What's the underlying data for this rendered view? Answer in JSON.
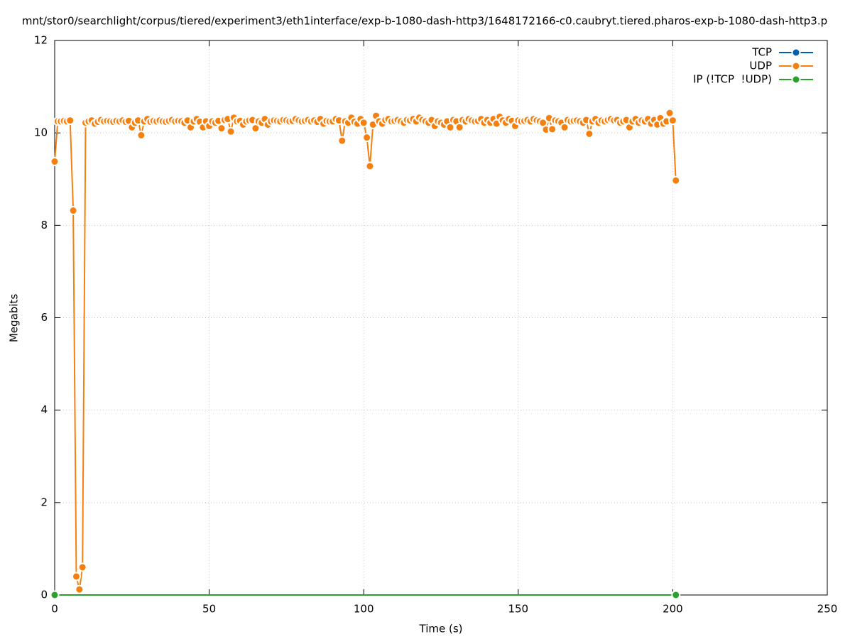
{
  "chart_data": {
    "type": "line",
    "title": "mnt/stor0/searchlight/corpus/tiered/experiment3/eth1interface/exp-b-1080-dash-http3/1648172166-c0.caubryt.tiered.pharos-exp-b-1080-dash-http3.p",
    "x_label": "Time (s)",
    "y_label": "Megabits",
    "xlim": [
      0,
      250
    ],
    "ylim": [
      0,
      12
    ],
    "xticks": [
      0,
      50,
      100,
      150,
      200,
      250
    ],
    "yticks": [
      0,
      2,
      4,
      6,
      8,
      10,
      12
    ],
    "grid": true,
    "legend": "top-right",
    "series": [
      {
        "name": "TCP",
        "color": "#0060ad",
        "x": [],
        "values": []
      },
      {
        "name": "UDP",
        "color": "#f5800f",
        "x": [
          0,
          1,
          2,
          3,
          4,
          5,
          6,
          7,
          8,
          9,
          10,
          11,
          12,
          13,
          14,
          15,
          16,
          17,
          18,
          19,
          20,
          21,
          22,
          23,
          24,
          25,
          26,
          27,
          28,
          29,
          30,
          31,
          32,
          33,
          34,
          35,
          36,
          37,
          38,
          39,
          40,
          41,
          42,
          43,
          44,
          45,
          46,
          47,
          48,
          49,
          50,
          51,
          52,
          53,
          54,
          55,
          56,
          57,
          58,
          59,
          60,
          61,
          62,
          63,
          64,
          65,
          66,
          67,
          68,
          69,
          70,
          71,
          72,
          73,
          74,
          75,
          76,
          77,
          78,
          79,
          80,
          81,
          82,
          83,
          84,
          85,
          86,
          87,
          88,
          89,
          90,
          91,
          92,
          93,
          94,
          95,
          96,
          97,
          98,
          99,
          100,
          101,
          102,
          103,
          104,
          105,
          106,
          107,
          108,
          109,
          110,
          111,
          112,
          113,
          114,
          115,
          116,
          117,
          118,
          119,
          120,
          121,
          122,
          123,
          124,
          125,
          126,
          127,
          128,
          129,
          130,
          131,
          132,
          133,
          134,
          135,
          136,
          137,
          138,
          139,
          140,
          141,
          142,
          143,
          144,
          145,
          146,
          147,
          148,
          149,
          150,
          151,
          152,
          153,
          154,
          155,
          156,
          157,
          158,
          159,
          160,
          161,
          162,
          163,
          164,
          165,
          166,
          167,
          168,
          169,
          170,
          171,
          172,
          173,
          174,
          175,
          176,
          177,
          178,
          179,
          180,
          181,
          182,
          183,
          184,
          185,
          186,
          187,
          188,
          189,
          190,
          191,
          192,
          193,
          194,
          195,
          196,
          197,
          198,
          199,
          200,
          201
        ],
        "values": [
          9.38,
          10.25,
          10.25,
          10.26,
          10.25,
          10.27,
          8.32,
          0.4,
          0.12,
          0.6,
          10.22,
          10.25,
          10.27,
          10.2,
          10.24,
          10.28,
          10.25,
          10.26,
          10.25,
          10.24,
          10.26,
          10.25,
          10.27,
          10.24,
          10.26,
          10.12,
          10.22,
          10.27,
          9.95,
          10.25,
          10.3,
          10.24,
          10.26,
          10.25,
          10.27,
          10.25,
          10.24,
          10.26,
          10.28,
          10.25,
          10.26,
          10.25,
          10.22,
          10.27,
          10.12,
          10.25,
          10.3,
          10.24,
          10.12,
          10.25,
          10.15,
          10.25,
          10.22,
          10.26,
          10.1,
          10.28,
          10.3,
          10.03,
          10.33,
          10.25,
          10.26,
          10.18,
          10.25,
          10.27,
          10.28,
          10.1,
          10.25,
          10.22,
          10.3,
          10.18,
          10.25,
          10.27,
          10.26,
          10.25,
          10.28,
          10.27,
          10.25,
          10.26,
          10.3,
          10.27,
          10.25,
          10.26,
          10.28,
          10.25,
          10.27,
          10.24,
          10.3,
          10.2,
          10.26,
          10.25,
          10.25,
          10.3,
          10.27,
          9.83,
          10.25,
          10.22,
          10.33,
          10.24,
          10.2,
          10.3,
          10.22,
          9.9,
          9.28,
          10.18,
          10.37,
          10.25,
          10.2,
          10.28,
          10.3,
          10.25,
          10.26,
          10.28,
          10.25,
          10.22,
          10.28,
          10.27,
          10.3,
          10.25,
          10.33,
          10.28,
          10.25,
          10.22,
          10.28,
          10.15,
          10.25,
          10.22,
          10.18,
          10.25,
          10.12,
          10.28,
          10.25,
          10.12,
          10.28,
          10.25,
          10.3,
          10.27,
          10.25,
          10.26,
          10.3,
          10.22,
          10.28,
          10.22,
          10.3,
          10.2,
          10.35,
          10.27,
          10.22,
          10.3,
          10.26,
          10.15,
          10.27,
          10.25,
          10.26,
          10.28,
          10.25,
          10.3,
          10.27,
          10.25,
          10.22,
          10.07,
          10.32,
          10.08,
          10.27,
          10.25,
          10.22,
          10.12,
          10.28,
          10.25,
          10.26,
          10.27,
          10.25,
          10.22,
          10.28,
          9.98,
          10.25,
          10.3,
          10.22,
          10.27,
          10.25,
          10.28,
          10.3,
          10.27,
          10.28,
          10.22,
          10.25,
          10.28,
          10.12,
          10.25,
          10.3,
          10.22,
          10.27,
          10.25,
          10.3,
          10.2,
          10.28,
          10.18,
          10.32,
          10.2,
          10.25,
          10.43,
          10.27,
          8.97
        ]
      },
      {
        "name": "IP (!TCP  !UDP)",
        "color": "#2ca02c",
        "x": [
          0,
          201
        ],
        "values": [
          0,
          0
        ]
      }
    ]
  }
}
